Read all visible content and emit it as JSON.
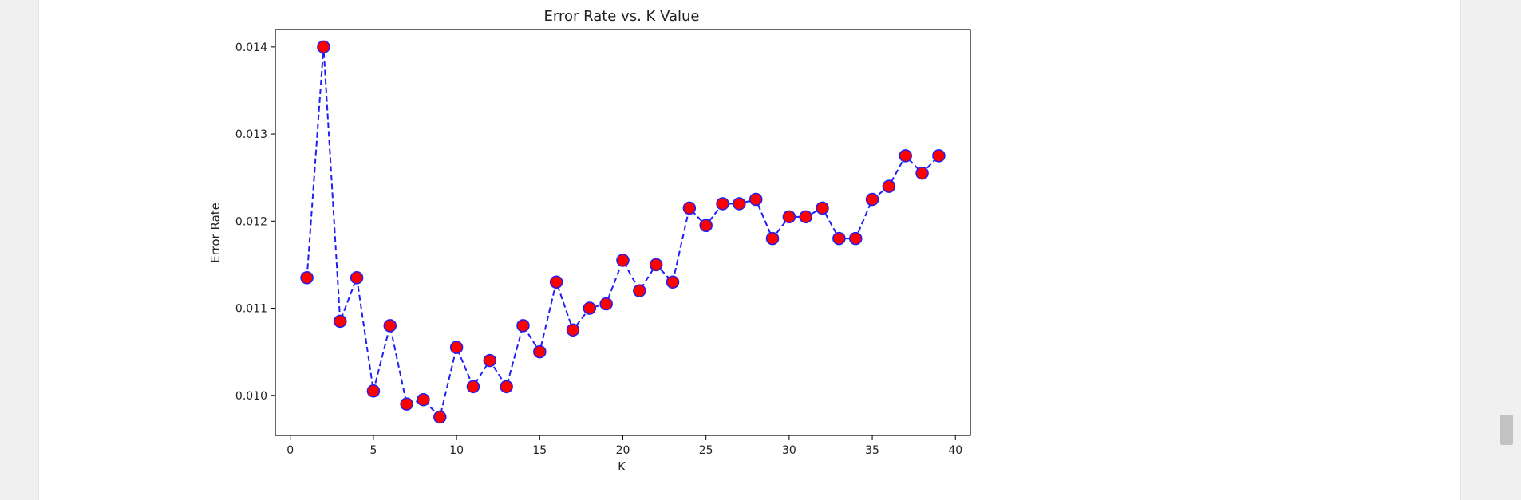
{
  "colors": {
    "line": "#1f1ff5",
    "marker_fill": "#ff0000",
    "marker_edge": "#1f1ff5",
    "axes": "#000000"
  },
  "chart_data": {
    "type": "line",
    "title": "Error Rate vs. K Value",
    "xlabel": "K",
    "ylabel": "Error Rate",
    "xlim": [
      -0.9,
      40.9
    ],
    "ylim": [
      0.00954,
      0.0142
    ],
    "xticks": [
      0,
      5,
      10,
      15,
      20,
      25,
      30,
      35,
      40
    ],
    "xtick_labels": [
      "0",
      "5",
      "10",
      "15",
      "20",
      "25",
      "30",
      "35",
      "40"
    ],
    "yticks": [
      0.01,
      0.011,
      0.012,
      0.013,
      0.014
    ],
    "ytick_labels": [
      "0.010",
      "0.011",
      "0.012",
      "0.013",
      "0.014"
    ],
    "line_style": "dashed",
    "marker": "circle",
    "grid": false,
    "series": [
      {
        "x": [
          1,
          2,
          3,
          4,
          5,
          6,
          7,
          8,
          9,
          10,
          11,
          12,
          13,
          14,
          15,
          16,
          17,
          18,
          19,
          20,
          21,
          22,
          23,
          24,
          25,
          26,
          27,
          28,
          29,
          30,
          31,
          32,
          33,
          34,
          35,
          36,
          37,
          38,
          39
        ],
        "values": [
          0.01135,
          0.014,
          0.01085,
          0.01135,
          0.01005,
          0.0108,
          0.0099,
          0.00995,
          0.00975,
          0.01055,
          0.0101,
          0.0104,
          0.0101,
          0.0108,
          0.0105,
          0.0113,
          0.01075,
          0.011,
          0.01105,
          0.01155,
          0.0112,
          0.0115,
          0.0113,
          0.01215,
          0.01195,
          0.0122,
          0.0122,
          0.01225,
          0.0118,
          0.01205,
          0.01205,
          0.01215,
          0.0118,
          0.0118,
          0.01225,
          0.0124,
          0.01275,
          0.01255,
          0.01275
        ]
      }
    ]
  }
}
